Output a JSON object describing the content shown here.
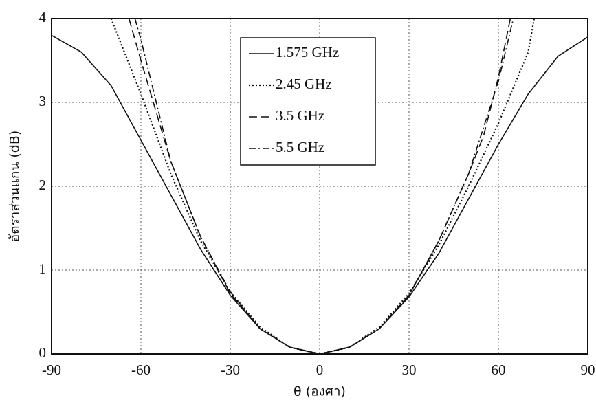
{
  "chart_data": {
    "type": "line",
    "xlabel": "θ (องศา)",
    "ylabel": "อัตราส่วนแกน (dB)",
    "xlim": [
      -90,
      90
    ],
    "ylim": [
      0,
      4
    ],
    "xticks": [
      -90,
      -60,
      -30,
      0,
      30,
      60,
      90
    ],
    "yticks": [
      0,
      1,
      2,
      3,
      4
    ],
    "grid": true,
    "legend": "upper center",
    "series": [
      {
        "name": "1.575 GHz",
        "color": "#111111",
        "linestyle": "solid",
        "x": [
          -90,
          -80,
          -70,
          -60,
          -50,
          -40,
          -30,
          -20,
          -10,
          0,
          10,
          20,
          30,
          40,
          50,
          60,
          70,
          80,
          90
        ],
        "values": [
          3.8,
          3.6,
          3.2,
          2.55,
          1.9,
          1.25,
          0.7,
          0.3,
          0.08,
          0,
          0.08,
          0.3,
          0.68,
          1.2,
          1.85,
          2.5,
          3.1,
          3.55,
          3.78
        ]
      },
      {
        "name": "2.45 GHz",
        "color": "#111111",
        "linestyle": "dotted",
        "x": [
          -70,
          -60,
          -50,
          -40,
          -30,
          -20,
          -10,
          0,
          10,
          20,
          30,
          40,
          50,
          60,
          70,
          72
        ],
        "values": [
          4.0,
          3.1,
          2.15,
          1.35,
          0.74,
          0.32,
          0.08,
          0,
          0.08,
          0.32,
          0.72,
          1.3,
          2.0,
          2.75,
          3.6,
          4.0
        ]
      },
      {
        "name": "3.5 GHz",
        "color": "#111111",
        "linestyle": "dashed",
        "x": [
          -64,
          -60,
          -50,
          -40,
          -30,
          -20,
          -10,
          0,
          10,
          20,
          30,
          40,
          50,
          55,
          60,
          64
        ],
        "values": [
          4.0,
          3.5,
          2.3,
          1.4,
          0.72,
          0.3,
          0.08,
          0,
          0.08,
          0.3,
          0.7,
          1.35,
          2.15,
          2.6,
          3.3,
          4.0
        ]
      },
      {
        "name": "5.5 GHz",
        "color": "#111111",
        "linestyle": "dashdot",
        "x": [
          -62,
          -60,
          -50,
          -40,
          -30,
          -20,
          -10,
          0,
          10,
          20,
          30,
          40,
          50,
          60,
          65
        ],
        "values": [
          4.0,
          3.75,
          2.3,
          1.4,
          0.74,
          0.3,
          0.08,
          0,
          0.08,
          0.3,
          0.7,
          1.35,
          2.15,
          3.25,
          4.0
        ]
      }
    ]
  }
}
